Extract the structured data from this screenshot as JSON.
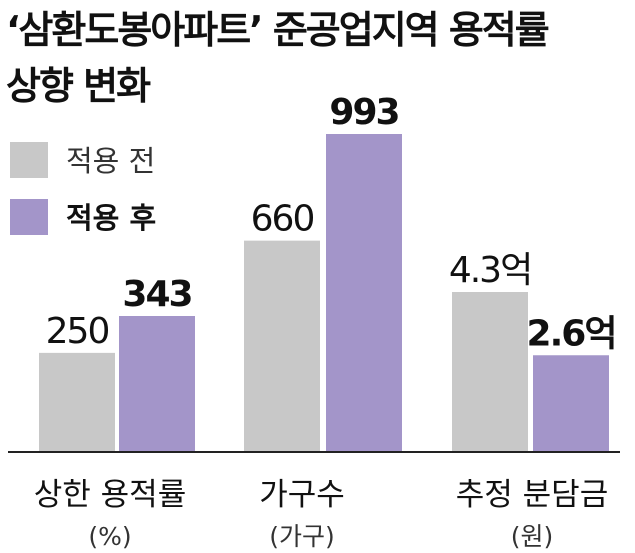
{
  "title_line1": "‘삼환도봉아파트’ 준공업지역 용적률",
  "title_line2": "상향 변화",
  "colors": {
    "before": "#c8c8c8",
    "after": "#a395c9",
    "axis": "#222222"
  },
  "chart_data": {
    "type": "bar",
    "title": "‘삼환도봉아파트’ 준공업지역 용적률 상향 변화",
    "legend_position": "top-left",
    "series_names": [
      "적용 전",
      "적용 후"
    ],
    "groups": [
      {
        "label": "상한 용적률",
        "unit": "(%)",
        "values": [
          250,
          343
        ],
        "value_labels": [
          "250",
          "343"
        ]
      },
      {
        "label": "가구수",
        "unit": "(가구)",
        "values": [
          660,
          993
        ],
        "value_labels": [
          "660",
          "993"
        ]
      },
      {
        "label": "추정 분담금",
        "unit": "(원)",
        "values": [
          4.3,
          2.6
        ],
        "value_labels": [
          "4.3억",
          "2.6억"
        ]
      }
    ]
  }
}
